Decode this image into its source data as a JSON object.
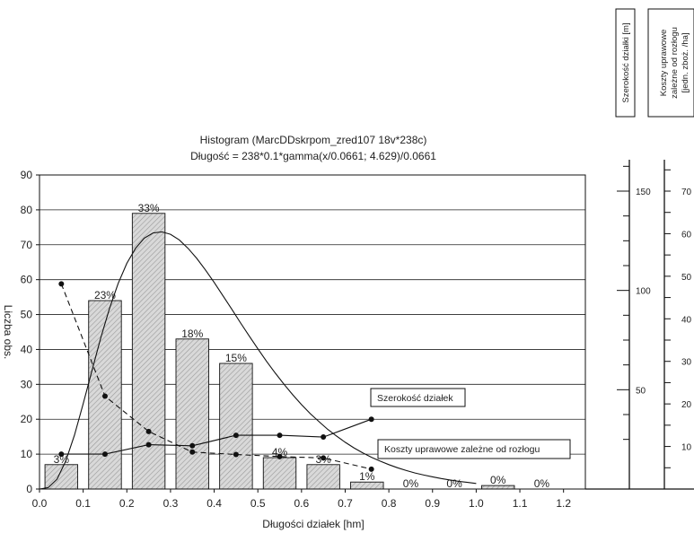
{
  "chart_data": {
    "type": "bar",
    "title": "Histogram (MarcDDskrpom_zred107 18v*238c)",
    "subtitle": "Długość = 238*0.1*gamma(x/0.0661; 4.629)/0.0661",
    "xlabel": "Długości działek [hm]",
    "ylabel": "Liczba obs.",
    "xlim": [
      0,
      1.25
    ],
    "ylim": [
      0,
      90
    ],
    "x_ticks": [
      "0.0",
      "0.1",
      "0.2",
      "0.3",
      "0.4",
      "0.5",
      "0.6",
      "0.7",
      "0.8",
      "0.9",
      "1.0",
      "1.1",
      "1.2"
    ],
    "y_ticks": [
      "0",
      "10",
      "20",
      "30",
      "40",
      "50",
      "60",
      "70",
      "80",
      "90"
    ],
    "grid": "horizontal",
    "bars": [
      {
        "x0": 0.0125,
        "x1": 0.0875,
        "value": 7,
        "label": "3%"
      },
      {
        "x0": 0.1125,
        "x1": 0.1875,
        "value": 54,
        "label": "23%"
      },
      {
        "x0": 0.2125,
        "x1": 0.2875,
        "value": 79,
        "label": "33%"
      },
      {
        "x0": 0.3125,
        "x1": 0.3875,
        "value": 43,
        "label": "18%"
      },
      {
        "x0": 0.4125,
        "x1": 0.4875,
        "value": 36,
        "label": "15%"
      },
      {
        "x0": 0.5125,
        "x1": 0.5875,
        "value": 9,
        "label": "4%"
      },
      {
        "x0": 0.6125,
        "x1": 0.6875,
        "value": 7,
        "label": "3%"
      },
      {
        "x0": 0.7125,
        "x1": 0.7875,
        "value": 2,
        "label": "1%"
      },
      {
        "x0": 0.8125,
        "x1": 0.8875,
        "value": 0,
        "label": "0%"
      },
      {
        "x0": 0.9125,
        "x1": 0.9875,
        "value": 0,
        "label": "0%"
      },
      {
        "x0": 1.0125,
        "x1": 1.0875,
        "value": 1,
        "label": "0%"
      },
      {
        "x0": 1.1125,
        "x1": 1.1875,
        "value": 0,
        "label": "0%"
      }
    ],
    "fit_curve": {
      "x": [
        0,
        0.02,
        0.04,
        0.06,
        0.08,
        0.1,
        0.12,
        0.14,
        0.16,
        0.18,
        0.2,
        0.22,
        0.24,
        0.26,
        0.28,
        0.3,
        0.32,
        0.34,
        0.36,
        0.38,
        0.4,
        0.42,
        0.44,
        0.46,
        0.48,
        0.5,
        0.52,
        0.54,
        0.56,
        0.58,
        0.6,
        0.62,
        0.64,
        0.66,
        0.68,
        0.7,
        0.72,
        0.74,
        0.76,
        0.78,
        0.8,
        0.82,
        0.84,
        0.86,
        0.88,
        0.9,
        0.92,
        0.94,
        0.96,
        0.98,
        1.0
      ],
      "y": [
        0,
        0.4,
        2.8,
        8,
        15.4,
        24.4,
        33.9,
        43.2,
        51.6,
        58.9,
        64.7,
        69.0,
        71.9,
        73.4,
        73.7,
        73.0,
        71.4,
        69.0,
        66.1,
        62.8,
        59.2,
        55.4,
        51.6,
        47.7,
        43.9,
        40.2,
        36.6,
        33.2,
        30.0,
        27.0,
        24.2,
        21.6,
        19.3,
        17.1,
        15.2,
        13.4,
        11.8,
        10.4,
        9.1,
        8.0,
        7.0,
        6.1,
        5.3,
        4.6,
        4.0,
        3.5,
        3.0,
        2.6,
        2.2,
        1.9,
        1.6
      ]
    },
    "secondary_series": [
      {
        "name": "Szerokość działek",
        "axis": "Szerokość działki [m]",
        "x": [
          0.05,
          0.15,
          0.25,
          0.35,
          0.45,
          0.55,
          0.65,
          0.76
        ],
        "y": [
          10,
          10,
          12.7,
          12.4,
          15.4,
          15.4,
          14.9,
          20
        ],
        "style": "solid"
      },
      {
        "name": "Koszty uprawowe zależne od rozłogu",
        "axis": "Koszty uprawowe zależne od rozłogu [jedn. zboż. /ha]",
        "x": [
          0.05,
          0.15,
          0.25,
          0.35,
          0.45,
          0.55,
          0.65,
          0.76
        ],
        "y": [
          58.8,
          26.6,
          16.5,
          10.6,
          9.9,
          9.3,
          8.9,
          5.7
        ],
        "style": "dashed"
      }
    ],
    "right_axes": [
      {
        "title": "Szerokość działki [m]",
        "ticks": [
          "150",
          "100",
          "50"
        ]
      },
      {
        "title": "Koszty uprawowe zależne od rozłogu [jedn. zboż. /ha]",
        "ticks": [
          "70",
          "60",
          "50",
          "40",
          "30",
          "20",
          "10"
        ]
      }
    ],
    "colors": {
      "bar_fill": "#cfcfcf",
      "line": "#111111"
    }
  }
}
